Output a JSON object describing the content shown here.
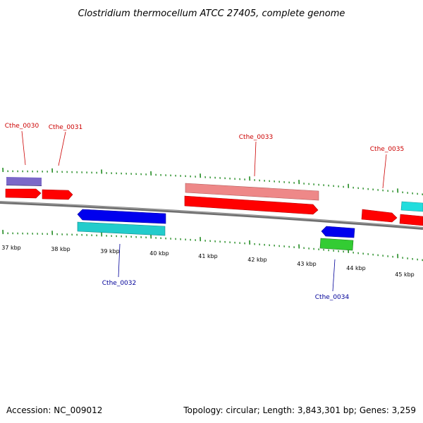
{
  "title": "Clostridium thermocellum ATCC 27405, complete genome",
  "accession": "Accession: NC_009012",
  "summary": "Topology: circular; Length: 3,843,301 bp; Genes: 3,259",
  "colors": {
    "backbone": "#7a7a7a",
    "tick": "#228b22",
    "label_forward": "#cc0000",
    "label_reverse": "#000099",
    "forward_cds": "#ff0000",
    "forward_gene": "#ee8888",
    "forward_other": "#7b68c8",
    "reverse_cds": "#0000ee",
    "reverse_gene": "#22cccc",
    "reverse_other": "#33cc33"
  },
  "kbp_labels": [
    "37 kbp",
    "38 kbp",
    "39 kbp",
    "40 kbp",
    "41 kbp",
    "42 kbp",
    "43 kbp",
    "44 kbp",
    "45 kbp"
  ],
  "gene_labels": [
    "Cthe_0030",
    "Cthe_0031",
    "Cthe_0032",
    "Cthe_0033",
    "Cthe_0034",
    "Cthe_0035"
  ]
}
